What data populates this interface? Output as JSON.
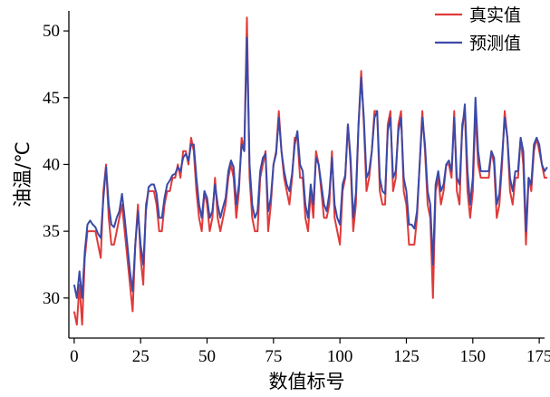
{
  "chart_data": {
    "type": "line",
    "xlabel": "数值标号",
    "ylabel": "油温/℃",
    "xlim": [
      -2,
      177
    ],
    "ylim": [
      27,
      51.5
    ],
    "xticks": [
      0,
      25,
      50,
      75,
      100,
      125,
      150,
      175
    ],
    "yticks": [
      30,
      35,
      40,
      45,
      50
    ],
    "grid": false,
    "legend_position": "top-right",
    "colors": {
      "actual": "#e03a3a",
      "predicted": "#3a4aa8"
    },
    "series": [
      {
        "name": "真实值",
        "values": [
          29,
          28,
          31,
          28,
          33,
          35,
          35,
          35,
          35,
          34,
          33,
          38,
          40,
          36,
          34,
          34,
          35,
          36,
          37,
          35,
          33,
          31,
          29,
          34,
          37,
          33,
          31,
          37,
          38,
          38,
          38,
          37,
          35,
          35,
          37,
          38,
          38,
          39,
          39,
          40,
          39,
          41,
          41,
          40,
          42,
          41,
          38,
          36,
          35,
          38,
          37,
          35,
          36,
          39,
          36,
          35,
          36,
          37,
          39,
          40,
          39,
          36,
          38,
          42,
          41,
          51,
          39,
          36,
          35,
          35,
          39,
          40,
          41,
          35,
          37,
          40,
          41,
          44,
          41,
          39,
          38,
          37,
          39,
          42,
          42,
          39,
          39,
          36,
          35,
          38,
          36,
          41,
          40,
          38,
          36,
          36,
          37,
          41,
          36,
          35,
          34,
          38,
          39,
          43,
          40,
          35,
          37,
          43,
          47,
          43,
          38,
          39,
          41,
          44,
          44,
          38,
          37,
          37,
          43,
          44,
          38,
          39,
          43,
          44,
          38,
          37,
          34,
          34,
          34,
          36,
          40,
          44,
          41,
          37,
          36,
          30,
          38,
          39,
          37,
          38,
          40,
          40,
          39,
          44,
          38,
          37,
          43,
          44,
          38,
          36,
          38,
          44,
          40,
          39,
          39,
          39,
          39,
          41,
          40,
          36,
          37,
          40,
          44,
          42,
          38,
          37,
          39,
          39,
          42,
          40,
          34,
          39,
          38,
          41,
          42,
          41,
          40,
          39,
          39
        ],
        "color": "#e03a3a"
      },
      {
        "name": "预测值",
        "values": [
          31,
          30,
          32,
          30,
          33.5,
          35.5,
          35.8,
          35.5,
          35.3,
          34.8,
          34.5,
          37.5,
          39.8,
          37,
          35.5,
          35.3,
          36,
          36.5,
          37.8,
          36,
          34,
          32,
          30.5,
          34,
          36.5,
          34,
          32.5,
          36.5,
          38.3,
          38.5,
          38.5,
          37.8,
          36,
          36,
          37.5,
          38.5,
          38.8,
          39.2,
          39.3,
          39.8,
          39.5,
          40.5,
          40.8,
          40.3,
          41.5,
          41.5,
          39,
          37,
          36,
          38,
          37.5,
          36,
          36.5,
          38.5,
          37,
          36,
          36.8,
          37.5,
          39.5,
          40.3,
          39.8,
          37,
          38.5,
          41.5,
          41,
          49.5,
          40,
          37,
          36,
          36.5,
          39.5,
          40.5,
          40.8,
          36.5,
          37.5,
          40,
          40.8,
          43.5,
          41,
          39.5,
          38.5,
          38,
          39.3,
          41.5,
          42.5,
          40,
          39.5,
          37,
          36,
          38.5,
          37,
          40.5,
          40,
          38.5,
          37,
          36.5,
          37.8,
          40.5,
          37,
          36,
          35.5,
          38.5,
          39.2,
          43,
          40.5,
          36,
          37.8,
          43,
          46.5,
          43.5,
          39,
          39.5,
          41,
          43.5,
          44,
          39,
          38,
          37.8,
          42.5,
          43.5,
          39,
          39.5,
          42.5,
          43.5,
          39,
          38,
          35.5,
          35.5,
          35.2,
          36.5,
          40,
          43.5,
          41.5,
          38,
          37,
          32.5,
          38.5,
          39.5,
          38,
          38.5,
          40,
          40.3,
          39.5,
          43.5,
          39,
          38.5,
          42.5,
          44.5,
          39.5,
          37,
          39,
          45,
          41,
          39.5,
          39.5,
          39.5,
          39.5,
          41,
          40.5,
          37,
          37.8,
          40.5,
          43.5,
          42,
          39,
          38,
          39.5,
          39.5,
          42,
          41,
          35,
          39,
          38.5,
          41.5,
          42,
          41.5,
          40,
          39.5,
          39.8
        ],
        "color": "#3a4aa8"
      }
    ]
  }
}
